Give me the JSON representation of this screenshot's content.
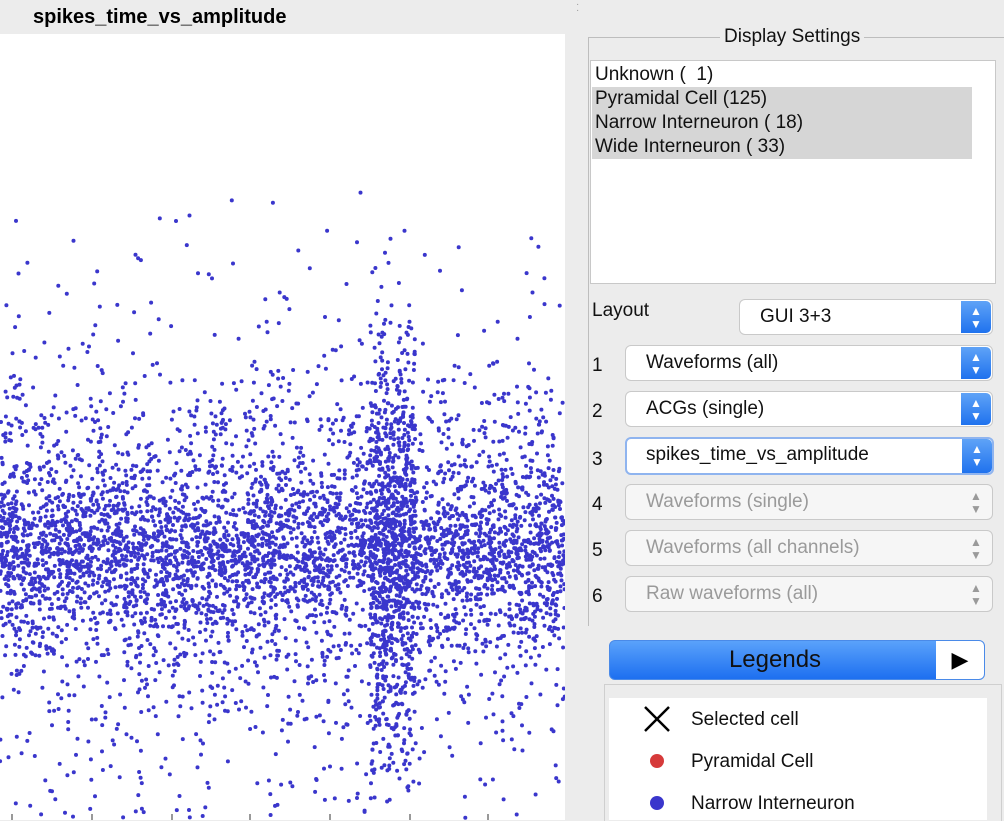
{
  "plot": {
    "title": "spikes_time_vs_amplitude",
    "point_color": "#3a36cc",
    "chart_data": {
      "type": "scatter",
      "title": "spikes_time_vs_amplitude",
      "xlabel": "",
      "ylabel": "",
      "grid": false,
      "series": [
        {
          "values": "dense cloud of several thousand spikes"
        }
      ]
    }
  },
  "display_settings": {
    "title": "Display Settings",
    "cell_types": [
      {
        "label": "Unknown (  1)",
        "selected": false
      },
      {
        "label": "Pyramidal Cell (125)",
        "selected": true
      },
      {
        "label": "Narrow Interneuron ( 18)",
        "selected": true
      },
      {
        "label": "Wide Interneuron ( 33)",
        "selected": true
      }
    ],
    "layout_label": "Layout",
    "layout_value": "GUI 3+3",
    "views": [
      {
        "num": "1",
        "value": "Waveforms (all)",
        "enabled": true
      },
      {
        "num": "2",
        "value": "ACGs (single)",
        "enabled": true
      },
      {
        "num": "3",
        "value": "spikes_time_vs_amplitude",
        "enabled": true
      },
      {
        "num": "4",
        "value": "Waveforms (single)",
        "enabled": false
      },
      {
        "num": "5",
        "value": "Waveforms (all channels)",
        "enabled": false
      },
      {
        "num": "6",
        "value": "Raw waveforms (all)",
        "enabled": false
      }
    ]
  },
  "legends": {
    "title": "Legends",
    "toggle": "▶",
    "items": [
      {
        "label": "Selected cell",
        "marker": "x-icon",
        "color": "#000000"
      },
      {
        "label": "Pyramidal Cell",
        "marker": "dot-icon",
        "color": "#d63a3a"
      },
      {
        "label": "Narrow Interneuron",
        "marker": "dot-icon",
        "color": "#3a36cc"
      }
    ]
  }
}
